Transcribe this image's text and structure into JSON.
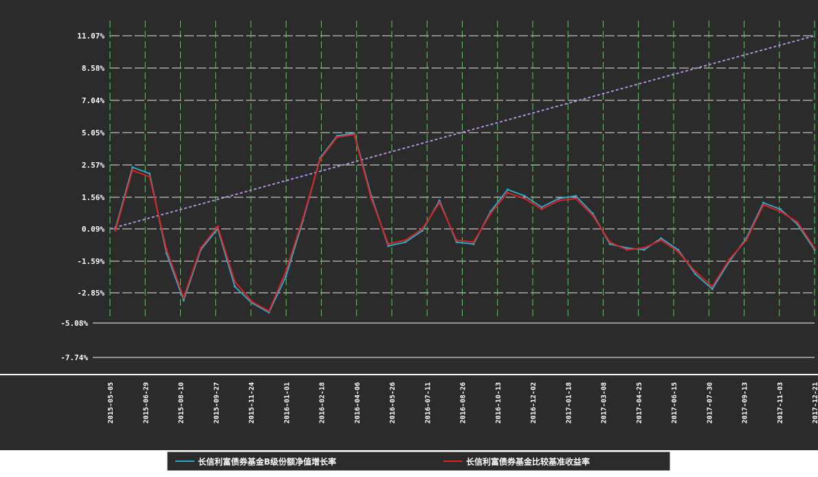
{
  "chart_data": {
    "type": "line",
    "y_ticks": [
      "11.07%",
      "8.58%",
      "7.04%",
      "5.05%",
      "2.57%",
      "1.56%",
      "0.09%",
      "-1.59%",
      "-2.85%",
      "-5.08%",
      "-7.74%"
    ],
    "x_ticks": [
      "2015-05-05",
      "2015-06-29",
      "2015-08-10",
      "2015-09-27",
      "2015-11-24",
      "2016-01-01",
      "2016-02-18",
      "2016-04-06",
      "2016-05-26",
      "2016-07-11",
      "2016-08-26",
      "2016-10-13",
      "2016-12-02",
      "2017-01-18",
      "2017-03-08",
      "2017-04-25",
      "2017-06-15",
      "2017-07-30",
      "2017-09-13",
      "2017-11-03",
      "2017-12-21"
    ],
    "ylim": [
      -7.74,
      11.07
    ],
    "grid": true,
    "legend_position": "bottom",
    "colors": {
      "background": "#2b2b2b",
      "fund": "#2fa8c8",
      "benchmark": "#e02020",
      "trend": "#b48ee0",
      "grid_v": "#4cd94c",
      "grid_h": "#e8e8e8"
    },
    "series": [
      {
        "name": "长信利富债券基金B级份额净值增长率",
        "color": "#2fa8c8",
        "values": [
          0.1,
          2.5,
          2.3,
          -1.2,
          -3.4,
          -1.0,
          0.1,
          -2.6,
          -3.6,
          -4.3,
          -2.2,
          0.5,
          3.1,
          4.8,
          5.0,
          1.6,
          -0.8,
          -0.6,
          0.0,
          1.4,
          -0.6,
          -0.7,
          0.9,
          1.8,
          1.6,
          1.1,
          1.5,
          1.6,
          0.8,
          -0.7,
          -0.9,
          -1.0,
          -0.4,
          -1.0,
          -2.1,
          -2.7,
          -1.6,
          -0.4,
          1.3,
          1.0,
          0.3,
          -1.0
        ]
      },
      {
        "name": "长信利富债券基金比较基准收益率",
        "color": "#e02020",
        "values": [
          0.0,
          2.4,
          2.2,
          -1.0,
          -3.2,
          -0.9,
          0.2,
          -2.4,
          -3.5,
          -4.2,
          -2.0,
          0.6,
          3.0,
          4.7,
          4.9,
          1.5,
          -0.7,
          -0.5,
          0.1,
          1.3,
          -0.5,
          -0.6,
          0.8,
          1.7,
          1.5,
          1.0,
          1.4,
          1.5,
          0.7,
          -0.6,
          -1.0,
          -0.9,
          -0.5,
          -1.1,
          -2.0,
          -2.6,
          -1.5,
          -0.5,
          1.2,
          0.9,
          0.4,
          -0.9
        ]
      }
    ],
    "trend_values": [
      0.09,
      11.07
    ]
  }
}
